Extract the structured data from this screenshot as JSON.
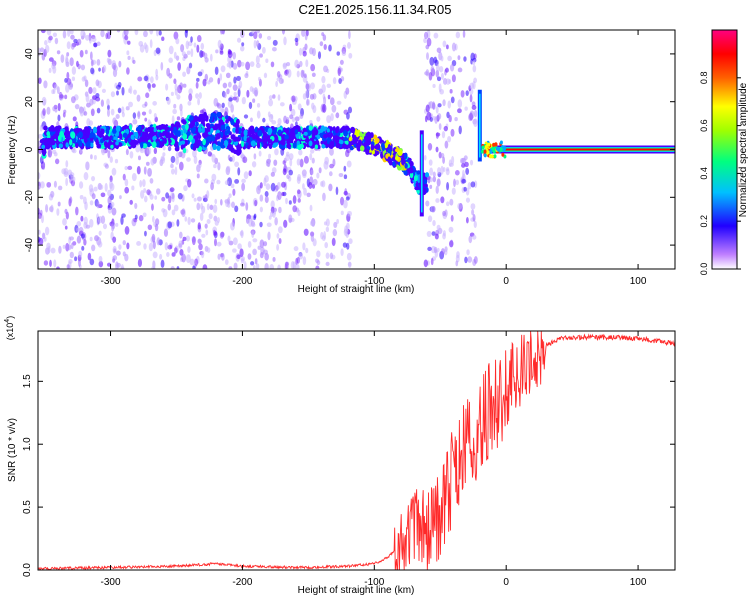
{
  "page_title": "C2E1.2025.156.11.34.R05",
  "chart_data": [
    {
      "type": "heatmap",
      "title": "C2E1.2025.156.11.34.R05",
      "xlabel": "Height of straight line (km)",
      "ylabel": "Frequency (Hz)",
      "xlim": [
        -355,
        128
      ],
      "ylim": [
        -50,
        50
      ],
      "xticks": [
        -300,
        -200,
        -100,
        0,
        100
      ],
      "yticks": [
        -40,
        -20,
        0,
        20,
        40
      ],
      "grid": false,
      "colorbar": {
        "label": "Normalized spectral amplitude",
        "range": [
          0,
          1
        ],
        "ticks": [
          0.0,
          0.2,
          0.4,
          0.6,
          0.8
        ],
        "tick_labels": [
          "0.0",
          "0.2",
          "0.4",
          "0.6",
          "0.8"
        ],
        "colormap": [
          "#ffffff",
          "#8a2be2",
          "#0000ff",
          "#00ffff",
          "#00ff00",
          "#ffff00",
          "#ff8000",
          "#ff0000",
          "#ff00aa"
        ]
      },
      "center_band": [
        {
          "x": -350,
          "f": 5
        },
        {
          "x": -300,
          "f": 5
        },
        {
          "x": -250,
          "f": 6
        },
        {
          "x": -220,
          "f": 8
        },
        {
          "x": -200,
          "f": 5
        },
        {
          "x": -150,
          "f": 5
        },
        {
          "x": -120,
          "f": 5
        },
        {
          "x": -100,
          "f": 2
        },
        {
          "x": -80,
          "f": -4
        },
        {
          "x": -70,
          "f": -10
        },
        {
          "x": -65,
          "f": -15
        },
        {
          "x": -25,
          "f": 0
        },
        {
          "x": -20,
          "f": 2
        },
        {
          "x": 0,
          "f": 1
        },
        {
          "x": 128,
          "f": 0
        }
      ],
      "noise_regions": [
        [
          -355,
          -118
        ],
        [
          -62,
          -23
        ]
      ],
      "colors": {
        "sparse": "#a366ff",
        "dense": "#6a0dff",
        "peak": "#ff0000"
      }
    },
    {
      "type": "line",
      "xlabel": "Height of straight line (km)",
      "ylabel": "SNR (10 * v/v)",
      "exponent_label": "(x10",
      "exponent_power": "4",
      "exponent_close": ")",
      "xlim": [
        -355,
        128
      ],
      "ylim": [
        0.0,
        1.9
      ],
      "xticks": [
        -300,
        -200,
        -100,
        0,
        100
      ],
      "yticks": [
        0.0,
        0.5,
        1.0,
        1.5
      ],
      "ytick_labels": [
        "0.0",
        "0.5",
        "1.0",
        "1.5"
      ],
      "grid": false,
      "series": [
        {
          "color": "#ff2a2a",
          "points": [
            [
              -355,
              0.01
            ],
            [
              -300,
              0.02
            ],
            [
              -250,
              0.03
            ],
            [
              -220,
              0.05
            ],
            [
              -200,
              0.03
            ],
            [
              -150,
              0.02
            ],
            [
              -120,
              0.03
            ],
            [
              -100,
              0.05
            ],
            [
              -90,
              0.1
            ],
            [
              -80,
              0.2
            ],
            [
              -70,
              0.35
            ],
            [
              -60,
              0.3
            ],
            [
              -50,
              0.45
            ],
            [
              -40,
              0.75
            ],
            [
              -30,
              1.0
            ],
            [
              -20,
              1.15
            ],
            [
              -10,
              1.3
            ],
            [
              0,
              1.4
            ],
            [
              10,
              1.55
            ],
            [
              20,
              1.65
            ],
            [
              30,
              1.78
            ],
            [
              40,
              1.84
            ],
            [
              60,
              1.85
            ],
            [
              80,
              1.85
            ],
            [
              100,
              1.84
            ],
            [
              128,
              1.8
            ]
          ]
        }
      ]
    }
  ]
}
